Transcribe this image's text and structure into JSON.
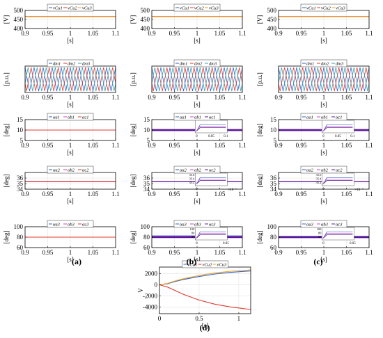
{
  "colors": {
    "blue": "#2f62c8",
    "red": "#e0392b",
    "orange": "#f0a020",
    "magenta": "#d040c0",
    "purple": "#5a1a9a",
    "teal": "#3aa0b0",
    "black": "#000000"
  },
  "panel_labels": [
    "(a)",
    "(b)",
    "(c)",
    "(d)"
  ],
  "chart_data": [
    {
      "id": "a1",
      "type": "line",
      "legend": [
        "v_C_u1",
        "v_C_u2",
        "v_C_u3"
      ],
      "xlabel": "[s]",
      "ylabel": "[V]",
      "xlim": [
        0.9,
        1.1
      ],
      "ylim": [
        400,
        500
      ],
      "xticks": [
        "0.9",
        "0.95",
        "1",
        "1.05",
        "1.1"
      ],
      "yticks": [
        "400",
        "450",
        "500"
      ],
      "series": [
        {
          "name": "v_C_u1",
          "color": "blue",
          "x": [
            0.9,
            1.1
          ],
          "values": [
            466,
            466
          ]
        },
        {
          "name": "v_C_u2",
          "color": "red",
          "x": [
            0.9,
            1.1
          ],
          "values": [
            466,
            466
          ]
        },
        {
          "name": "v_C_u3",
          "color": "orange",
          "x": [
            0.9,
            1.1
          ],
          "values": [
            466,
            466
          ]
        }
      ]
    },
    {
      "id": "b1",
      "type": "line",
      "legend": [
        "v_C_u1",
        "v_C_u2",
        "v_C_u3"
      ],
      "xlabel": "[s]",
      "ylabel": "[V]",
      "xlim": [
        0.9,
        1.1
      ],
      "ylim": [
        400,
        500
      ],
      "xticks": [
        "0.9",
        "0.95",
        "1",
        "1.05",
        "1.1"
      ],
      "yticks": [
        "400",
        "450",
        "500"
      ],
      "series": [
        {
          "name": "v_C_u1",
          "color": "blue",
          "x": [
            0.9,
            1.1
          ],
          "values": [
            466,
            466
          ]
        },
        {
          "name": "v_C_u2",
          "color": "red",
          "x": [
            0.9,
            1.1
          ],
          "values": [
            466,
            466
          ]
        },
        {
          "name": "v_C_u3",
          "color": "orange",
          "x": [
            0.9,
            1.1
          ],
          "values": [
            466,
            466
          ]
        }
      ]
    },
    {
      "id": "c1",
      "type": "line",
      "legend": [
        "v_C_u1",
        "v_C_u2",
        "v_C_u3"
      ],
      "xlabel": "[s]",
      "ylabel": "[V]",
      "xlim": [
        0.9,
        1.1
      ],
      "ylim": [
        400,
        500
      ],
      "xticks": [
        "0.9",
        "0.95",
        "1",
        "1.05",
        "1.1"
      ],
      "yticks": [
        "400",
        "450",
        "500"
      ],
      "series": [
        {
          "name": "v_C_u1",
          "color": "blue",
          "x": [
            0.9,
            1.1
          ],
          "values": [
            466,
            466
          ]
        },
        {
          "name": "v_C_u2",
          "color": "red",
          "x": [
            0.9,
            1.1
          ],
          "values": [
            466,
            466
          ]
        },
        {
          "name": "v_C_u3",
          "color": "orange",
          "x": [
            0.9,
            1.1
          ],
          "values": [
            466,
            466
          ]
        }
      ]
    },
    {
      "id": "a2",
      "type": "line",
      "legend": [
        "d_m1",
        "d_m2",
        "d_m3"
      ],
      "xlabel": "[s]",
      "ylabel": "[p.u.]",
      "xlim": [
        0.9,
        1.1
      ],
      "ylim": [
        0,
        1
      ],
      "xticks": [
        "0.9",
        "0.95",
        "1",
        "1.05",
        "1.1"
      ],
      "yticks": [],
      "periodic": {
        "cycles": 10,
        "min": 0.05,
        "max": 0.95
      },
      "series": [
        {
          "name": "d_m1",
          "color": "blue",
          "phase": 0
        },
        {
          "name": "d_m2",
          "color": "red",
          "phase": 2.094
        },
        {
          "name": "d_m3",
          "color": "teal",
          "phase": 4.189
        }
      ]
    },
    {
      "id": "b2",
      "type": "line",
      "legend": [
        "d_m1",
        "d_m2",
        "d_m3"
      ],
      "xlabel": "[s]",
      "ylabel": "[p.u.]",
      "xlim": [
        0.9,
        1.1
      ],
      "ylim": [
        0,
        1
      ],
      "xticks": [
        "0.9",
        "0.95",
        "1",
        "1.05",
        "1.1"
      ],
      "yticks": [],
      "periodic": {
        "cycles": 10,
        "min": 0.05,
        "max": 0.95
      },
      "series": [
        {
          "name": "d_m1",
          "color": "blue",
          "phase": 0
        },
        {
          "name": "d_m2",
          "color": "red",
          "phase": 2.094
        },
        {
          "name": "d_m3",
          "color": "teal",
          "phase": 4.189
        }
      ]
    },
    {
      "id": "c2",
      "type": "line",
      "legend": [
        "d_m1",
        "d_m2",
        "d_m3"
      ],
      "xlabel": "[s]",
      "ylabel": "[p.u.]",
      "xlim": [
        0.9,
        1.1
      ],
      "ylim": [
        0,
        1
      ],
      "xticks": [
        "0.9",
        "0.95",
        "1",
        "1.05",
        "1.1"
      ],
      "yticks": [],
      "periodic": {
        "cycles": 10,
        "min": 0.05,
        "max": 0.95
      },
      "series": [
        {
          "name": "d_m1",
          "color": "blue",
          "phase": 0
        },
        {
          "name": "d_m2",
          "color": "red",
          "phase": 2.094
        },
        {
          "name": "d_m3",
          "color": "teal",
          "phase": 4.189
        }
      ]
    },
    {
      "id": "a3",
      "type": "line",
      "legend": [
        "α_a1",
        "α_b1",
        "α_c1"
      ],
      "xlabel": "[s]",
      "ylabel": "[deg]",
      "xlim": [
        0.9,
        1.1
      ],
      "ylim": [
        5,
        15
      ],
      "xticks": [
        "0.9",
        "0.95",
        "1",
        "1.05",
        "1.1"
      ],
      "yticks": [
        "5",
        "10",
        "15"
      ],
      "series": [
        {
          "name": "α_a1",
          "color": "blue",
          "x": [
            0.9,
            1.1
          ],
          "values": [
            10,
            10
          ]
        },
        {
          "name": "α_b1",
          "color": "magenta",
          "x": [
            0.9,
            1.1
          ],
          "values": [
            10,
            10
          ]
        },
        {
          "name": "α_c1",
          "color": "red",
          "x": [
            0.9,
            1.1
          ],
          "values": [
            10,
            10
          ]
        }
      ]
    },
    {
      "id": "b3",
      "type": "line",
      "legend": [
        "α_a1",
        "α_b1",
        "α_c1"
      ],
      "xlabel": "[s]",
      "ylabel": "[deg]",
      "xlim": [
        0.9,
        1.1
      ],
      "ylim": [
        5,
        15
      ],
      "xticks": [
        "0.9",
        "0.95",
        "1",
        "1.05",
        "1.1"
      ],
      "yticks": [
        "5",
        "10",
        "15"
      ],
      "series": [
        {
          "name": "α_a1",
          "color": "blue",
          "x": [
            0.9,
            1.1
          ],
          "values": [
            10,
            10
          ]
        },
        {
          "name": "α_b1",
          "color": "magenta",
          "x": [
            0.9,
            1.1
          ],
          "values": [
            10,
            10
          ]
        },
        {
          "name": "α_c1",
          "color": "purple",
          "x": [
            0.9,
            1.1
          ],
          "values": [
            10,
            10
          ]
        }
      ],
      "thick": true,
      "inset": {
        "xticks": [
          "0",
          "0.05",
          "0.1"
        ],
        "yticks": [],
        "exponent": ""
      }
    },
    {
      "id": "c3",
      "type": "line",
      "legend": [
        "α_a1",
        "α_b1",
        "α_c1"
      ],
      "xlabel": "[s]",
      "ylabel": "[deg]",
      "xlim": [
        0.9,
        1.1
      ],
      "ylim": [
        5,
        15
      ],
      "xticks": [
        "0.9",
        "0.95",
        "1",
        "1.05",
        "1.1"
      ],
      "yticks": [
        "5",
        "10",
        "15"
      ],
      "series": [
        {
          "name": "α_a1",
          "color": "blue",
          "x": [
            0.9,
            1.1
          ],
          "values": [
            10,
            10
          ]
        },
        {
          "name": "α_b1",
          "color": "magenta",
          "x": [
            0.9,
            1.1
          ],
          "values": [
            10,
            10
          ]
        },
        {
          "name": "α_c1",
          "color": "purple",
          "x": [
            0.9,
            1.1
          ],
          "values": [
            10,
            10
          ]
        }
      ],
      "thick": true,
      "inset": {
        "xticks": [
          "0",
          "0.05",
          "0.1"
        ],
        "yticks": [],
        "exponent": ""
      }
    },
    {
      "id": "a4",
      "type": "line",
      "legend": [
        "α_a2",
        "α_b2",
        "α_c2"
      ],
      "xlabel": "[s]",
      "ylabel": "[deg]",
      "xlim": [
        0.9,
        1.1
      ],
      "ylim": [
        34,
        37
      ],
      "xticks": [
        "0.9",
        "0.95",
        "1",
        "1.05",
        "1.1"
      ],
      "yticks": [
        "34",
        "35",
        "36"
      ],
      "series": [
        {
          "name": "α_a2",
          "color": "blue",
          "x": [
            0.9,
            1.1
          ],
          "values": [
            35.4,
            35.4
          ]
        },
        {
          "name": "α_b2",
          "color": "magenta",
          "x": [
            0.9,
            1.1
          ],
          "values": [
            35.4,
            35.4
          ]
        },
        {
          "name": "α_c2",
          "color": "red",
          "x": [
            0.9,
            1.1
          ],
          "values": [
            35.4,
            35.4
          ]
        }
      ]
    },
    {
      "id": "b4",
      "type": "line",
      "legend": [
        "α_a2",
        "α_b2",
        "α_c2"
      ],
      "xlabel": "[s]",
      "ylabel": "[deg]",
      "xlim": [
        0.9,
        1.1
      ],
      "ylim": [
        34,
        37
      ],
      "xticks": [
        "0.9",
        "0.95",
        "1",
        "1.05",
        "1.1"
      ],
      "yticks": [
        "34",
        "35",
        "36"
      ],
      "series": [
        {
          "name": "α_a2",
          "color": "blue",
          "x": [
            0.9,
            1.1
          ],
          "values": [
            35.4,
            35.4
          ]
        },
        {
          "name": "α_b2",
          "color": "magenta",
          "x": [
            0.9,
            1.1
          ],
          "values": [
            35.4,
            35.4
          ]
        },
        {
          "name": "α_c2",
          "color": "purple",
          "x": [
            0.9,
            1.1
          ],
          "values": [
            35.4,
            35.4
          ]
        }
      ],
      "inset": {
        "xticks": [
          "0"
        ],
        "yticks": [
          "35.6",
          "35.4",
          "35.2"
        ],
        "exponent": "×10⁻⁴"
      }
    },
    {
      "id": "c4",
      "type": "line",
      "legend": [
        "α_a2",
        "α_b2",
        "α_c2"
      ],
      "xlabel": "[s]",
      "ylabel": "[deg]",
      "xlim": [
        0.9,
        1.1
      ],
      "ylim": [
        34,
        37
      ],
      "xticks": [
        "0.9",
        "0.95",
        "1",
        "1.05",
        "1.1"
      ],
      "yticks": [
        "34",
        "35",
        "36"
      ],
      "series": [
        {
          "name": "α_a2",
          "color": "blue",
          "x": [
            0.9,
            1.1
          ],
          "values": [
            35.4,
            35.4
          ]
        },
        {
          "name": "α_b2",
          "color": "magenta",
          "x": [
            0.9,
            1.1
          ],
          "values": [
            35.4,
            35.4
          ]
        },
        {
          "name": "α_c2",
          "color": "purple",
          "x": [
            0.9,
            1.1
          ],
          "values": [
            35.4,
            35.4
          ]
        }
      ],
      "inset": {
        "xticks": [
          "0"
        ],
        "yticks": [
          "35.6",
          "35.4",
          "35.2"
        ],
        "exponent": "×10⁻⁴"
      }
    },
    {
      "id": "a5",
      "type": "line",
      "legend": [
        "α_a3",
        "α_b3",
        "α_c3"
      ],
      "xlabel": "[s]",
      "ylabel": "[deg]",
      "xlim": [
        0.9,
        1.1
      ],
      "ylim": [
        60,
        100
      ],
      "xticks": [
        "0.9",
        "0.95",
        "1",
        "1.05",
        "1.1"
      ],
      "yticks": [
        "60",
        "80",
        "100"
      ],
      "series": [
        {
          "name": "α_a3",
          "color": "blue",
          "x": [
            0.9,
            1.1
          ],
          "values": [
            80,
            80
          ]
        },
        {
          "name": "α_b3",
          "color": "magenta",
          "x": [
            0.9,
            1.1
          ],
          "values": [
            80,
            80
          ]
        },
        {
          "name": "α_c3",
          "color": "red",
          "x": [
            0.9,
            1.1
          ],
          "values": [
            80,
            80
          ]
        }
      ]
    },
    {
      "id": "b5",
      "type": "line",
      "legend": [
        "α_a3",
        "α_b3",
        "α_c3"
      ],
      "xlabel": "[s]",
      "ylabel": "[deg]",
      "xlim": [
        0.9,
        1.1
      ],
      "ylim": [
        60,
        100
      ],
      "xticks": [
        "0.9",
        "0.95",
        "1",
        "1.05",
        "1.1"
      ],
      "yticks": [
        "60",
        "80",
        "100"
      ],
      "series": [
        {
          "name": "α_a3",
          "color": "blue",
          "x": [
            0.9,
            1.1
          ],
          "values": [
            81.5,
            81.5
          ]
        },
        {
          "name": "α_b3",
          "color": "magenta",
          "x": [
            0.9,
            1.1
          ],
          "values": [
            80.5,
            80.5
          ]
        },
        {
          "name": "α_c3",
          "color": "purple",
          "x": [
            0.9,
            1.1
          ],
          "values": [
            80,
            80
          ]
        }
      ],
      "thick": true,
      "inset": {
        "xticks": [
          "0",
          "0.05"
        ],
        "yticks": [
          "100",
          "80",
          "60"
        ],
        "exponent": ""
      }
    },
    {
      "id": "c5",
      "type": "line",
      "legend": [
        "α_a3",
        "α_b3",
        "α_c3"
      ],
      "xlabel": "[s]",
      "ylabel": "[deg]",
      "xlim": [
        0.9,
        1.1
      ],
      "ylim": [
        60,
        100
      ],
      "xticks": [
        "0.9",
        "0.95",
        "1",
        "1.05",
        "1.1"
      ],
      "yticks": [
        "60",
        "80",
        "100"
      ],
      "series": [
        {
          "name": "α_a3",
          "color": "blue",
          "x": [
            0.9,
            1.1
          ],
          "values": [
            80.5,
            80.5
          ]
        },
        {
          "name": "α_b3",
          "color": "magenta",
          "x": [
            0.9,
            1.1
          ],
          "values": [
            80,
            80
          ]
        },
        {
          "name": "α_c3",
          "color": "purple",
          "x": [
            0.9,
            1.1
          ],
          "values": [
            80,
            80
          ]
        }
      ],
      "thick": true,
      "inset": {
        "xticks": [
          "0",
          "0.05"
        ],
        "yticks": [
          "100",
          "80",
          "60"
        ],
        "exponent": ""
      }
    },
    {
      "id": "d",
      "type": "line",
      "legend": [
        "v_C_u1",
        "v_C_u2",
        "v_C_u3"
      ],
      "xlabel": "[s]",
      "ylabel": "V",
      "xlim": [
        0,
        1.15
      ],
      "ylim": [
        -5200,
        3200
      ],
      "xticks": [
        "0",
        "0.5",
        "1"
      ],
      "yticks": [
        "2000",
        "0",
        "-2000",
        "-4000"
      ],
      "series": [
        {
          "name": "v_C_u1",
          "color": "blue",
          "x": [
            0,
            0.1,
            0.2,
            0.3,
            0.5,
            0.7,
            0.9,
            1.15
          ],
          "values": [
            0,
            200,
            600,
            950,
            1500,
            1950,
            2250,
            2500
          ]
        },
        {
          "name": "v_C_u2",
          "color": "red",
          "x": [
            0,
            0.1,
            0.2,
            0.3,
            0.5,
            0.7,
            0.9,
            1.15
          ],
          "values": [
            0,
            -400,
            -1050,
            -1700,
            -2750,
            -3500,
            -4000,
            -4450
          ]
        },
        {
          "name": "v_C_u3",
          "color": "orange",
          "x": [
            0,
            0.1,
            0.2,
            0.3,
            0.5,
            0.7,
            0.9,
            1.15
          ],
          "values": [
            0,
            250,
            700,
            1100,
            1700,
            2150,
            2450,
            2700
          ]
        }
      ]
    }
  ]
}
